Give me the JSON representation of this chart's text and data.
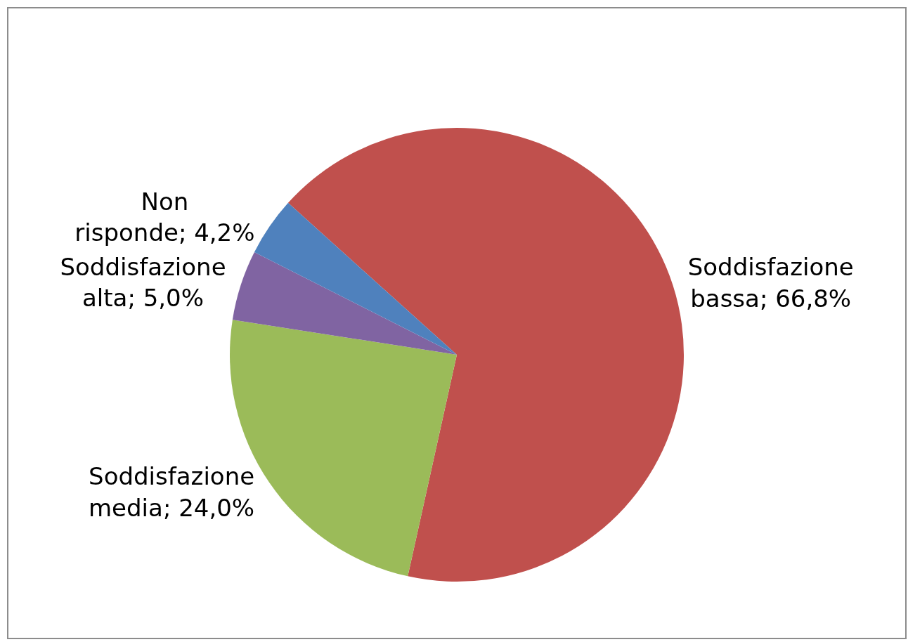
{
  "chart_data": {
    "type": "pie",
    "categories": [
      "Soddisfazione bassa",
      "Soddisfazione media",
      "Soddisfazione alta",
      "Non risponde"
    ],
    "values": [
      66.8,
      24.0,
      5.0,
      4.2
    ],
    "value_labels": [
      "66,8%",
      "24,0%",
      "5,0%",
      "4,2%"
    ],
    "colors": [
      "#c0504d",
      "#9bbb59",
      "#8064a2",
      "#4f81bd"
    ],
    "legend": false
  }
}
